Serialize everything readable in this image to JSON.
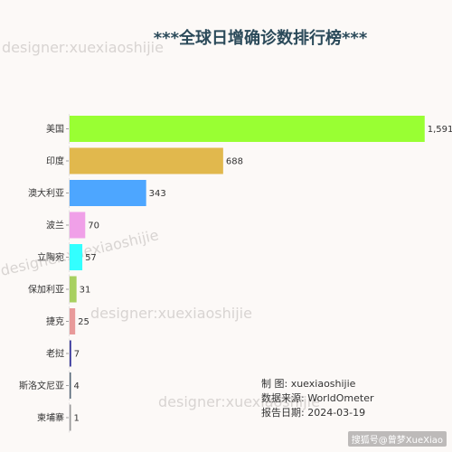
{
  "chart_data": {
    "type": "bar",
    "orientation": "horizontal",
    "title": "***全球日增确诊数排行榜***",
    "categories": [
      "美国",
      "印度",
      "澳大利亚",
      "波兰",
      "立陶宛",
      "保加利亚",
      "捷克",
      "老挝",
      "斯洛文尼亚",
      "柬埔寨"
    ],
    "values": [
      1591,
      688,
      343,
      70,
      57,
      31,
      25,
      7,
      4,
      1
    ],
    "value_labels": [
      "1,591",
      "688",
      "343",
      "70",
      "57",
      "31",
      "25",
      "7",
      "4",
      "1"
    ],
    "colors": [
      "#99ff33",
      "#e1b84d",
      "#4da6ff",
      "#f0a0e8",
      "#33ffff",
      "#a8d060",
      "#e89a9a",
      "#33339a",
      "#556677",
      "#999999"
    ],
    "xlim": [
      0,
      1600
    ],
    "grid": false,
    "legend": "none"
  },
  "info": {
    "line1_label": "制        图:",
    "line1_value": "xuexiaoshijie",
    "line2_label": "数据来源:",
    "line2_value": "WorldOmeter",
    "line3_label": "报告日期:",
    "line3_value": "2024-03-19"
  },
  "watermarks": [
    "designer:xuexiaoshijie",
    "designer:xuexiaoshijie",
    "designer:xuexiaoshijie",
    "designer:xuexiaoshijie"
  ],
  "footer": "搜狐号@曾梦XueXiao"
}
